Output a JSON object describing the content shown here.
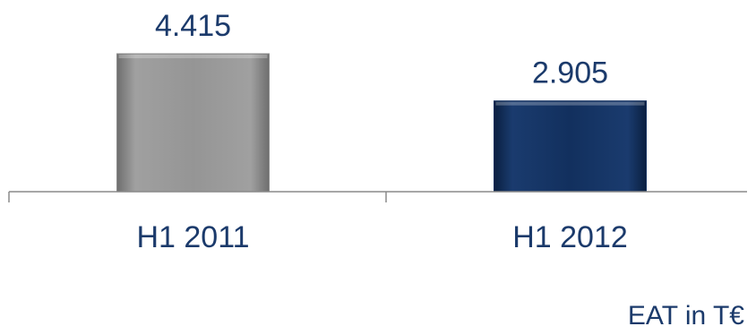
{
  "chart_data": {
    "type": "bar",
    "categories": [
      "H1 2011",
      "H1 2012"
    ],
    "values": [
      4415,
      2905
    ],
    "data_labels": [
      "4.415",
      "2.905"
    ],
    "bar_colors": [
      "#8c8c8c",
      "#12305e"
    ],
    "unit_label": "EAT in T€",
    "title": "",
    "xlabel": "",
    "ylabel": "",
    "ylim": [
      0,
      4415
    ],
    "grid": false,
    "legend": "none"
  }
}
